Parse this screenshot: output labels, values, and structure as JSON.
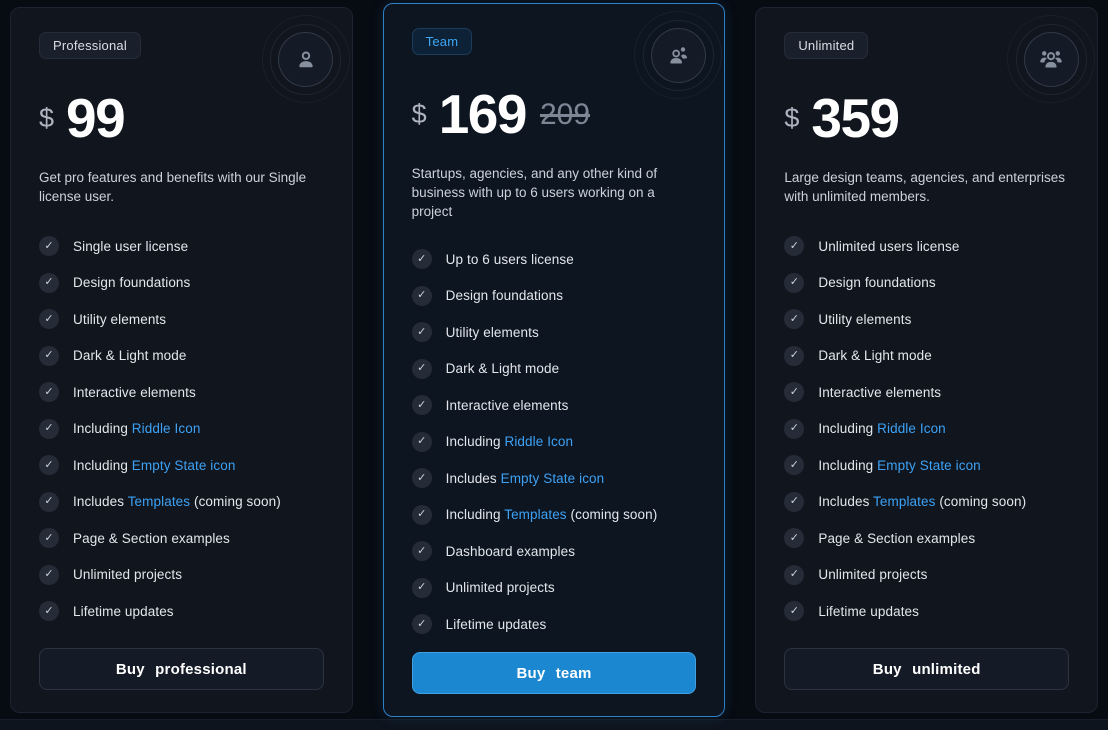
{
  "colors": {
    "accent": "#2e7fc4",
    "link_blue": "#3da2f5",
    "primary_button_blue": "#1b87d0",
    "card_background": "#10151e",
    "page_background": "#070b12"
  },
  "cards": [
    {
      "badge": "Professional",
      "icon": "single-user-icon",
      "currency": "$",
      "price": "99",
      "old_price": "",
      "description": "Get pro features and benefits with our Single license user.",
      "features": [
        [
          {
            "text": "Single user license"
          }
        ],
        [
          {
            "text": "Design foundations"
          }
        ],
        [
          {
            "text": "Utility elements"
          }
        ],
        [
          {
            "text": "Dark & Light mode"
          }
        ],
        [
          {
            "text": "Interactive elements"
          }
        ],
        [
          {
            "text": "Including "
          },
          {
            "text": "Riddle Icon",
            "link": true
          }
        ],
        [
          {
            "text": "Including "
          },
          {
            "text": "Empty State icon",
            "link": true
          }
        ],
        [
          {
            "text": "Includes "
          },
          {
            "text": "Templates",
            "link": true
          },
          {
            "text": " (coming soon)"
          }
        ],
        [
          {
            "text": "Page & Section examples"
          }
        ],
        [
          {
            "text": "Unlimited projects"
          }
        ],
        [
          {
            "text": "Lifetime updates"
          }
        ]
      ],
      "button_label": "Buy professional",
      "button_style": "dark",
      "highlighted": false
    },
    {
      "badge": "Team",
      "icon": "two-users-icon",
      "currency": "$",
      "price": "169",
      "old_price": "209",
      "description": "Startups, agencies, and any other kind of business with up to 6 users working on a project",
      "features": [
        [
          {
            "text": "Up to 6 users license"
          }
        ],
        [
          {
            "text": "Design foundations"
          }
        ],
        [
          {
            "text": "Utility elements"
          }
        ],
        [
          {
            "text": "Dark & Light mode"
          }
        ],
        [
          {
            "text": "Interactive elements"
          }
        ],
        [
          {
            "text": "Including "
          },
          {
            "text": "Riddle Icon",
            "link": true
          }
        ],
        [
          {
            "text": "Includes "
          },
          {
            "text": "Empty State icon",
            "link": true
          }
        ],
        [
          {
            "text": "Including "
          },
          {
            "text": "Templates",
            "link": true
          },
          {
            "text": " (coming soon)"
          }
        ],
        [
          {
            "text": "Dashboard examples"
          }
        ],
        [
          {
            "text": "Unlimited projects"
          }
        ],
        [
          {
            "text": "Lifetime updates"
          }
        ]
      ],
      "button_label": "Buy team",
      "button_style": "primary",
      "highlighted": true
    },
    {
      "badge": "Unlimited",
      "icon": "group-users-icon",
      "currency": "$",
      "price": "359",
      "old_price": "",
      "description": "Large design teams, agencies, and enterprises with unlimited members.",
      "features": [
        [
          {
            "text": "Unlimited users license"
          }
        ],
        [
          {
            "text": "Design foundations"
          }
        ],
        [
          {
            "text": "Utility elements"
          }
        ],
        [
          {
            "text": "Dark & Light mode"
          }
        ],
        [
          {
            "text": "Interactive elements"
          }
        ],
        [
          {
            "text": "Including "
          },
          {
            "text": "Riddle Icon",
            "link": true
          }
        ],
        [
          {
            "text": "Including "
          },
          {
            "text": "Empty State icon",
            "link": true
          }
        ],
        [
          {
            "text": "Includes "
          },
          {
            "text": "Templates",
            "link": true
          },
          {
            "text": " (coming soon)"
          }
        ],
        [
          {
            "text": "Page & Section examples"
          }
        ],
        [
          {
            "text": "Unlimited projects"
          }
        ],
        [
          {
            "text": "Lifetime updates"
          }
        ]
      ],
      "button_label": "Buy unlimited",
      "button_style": "dark",
      "highlighted": false
    }
  ],
  "icons": {
    "check": "✓"
  }
}
